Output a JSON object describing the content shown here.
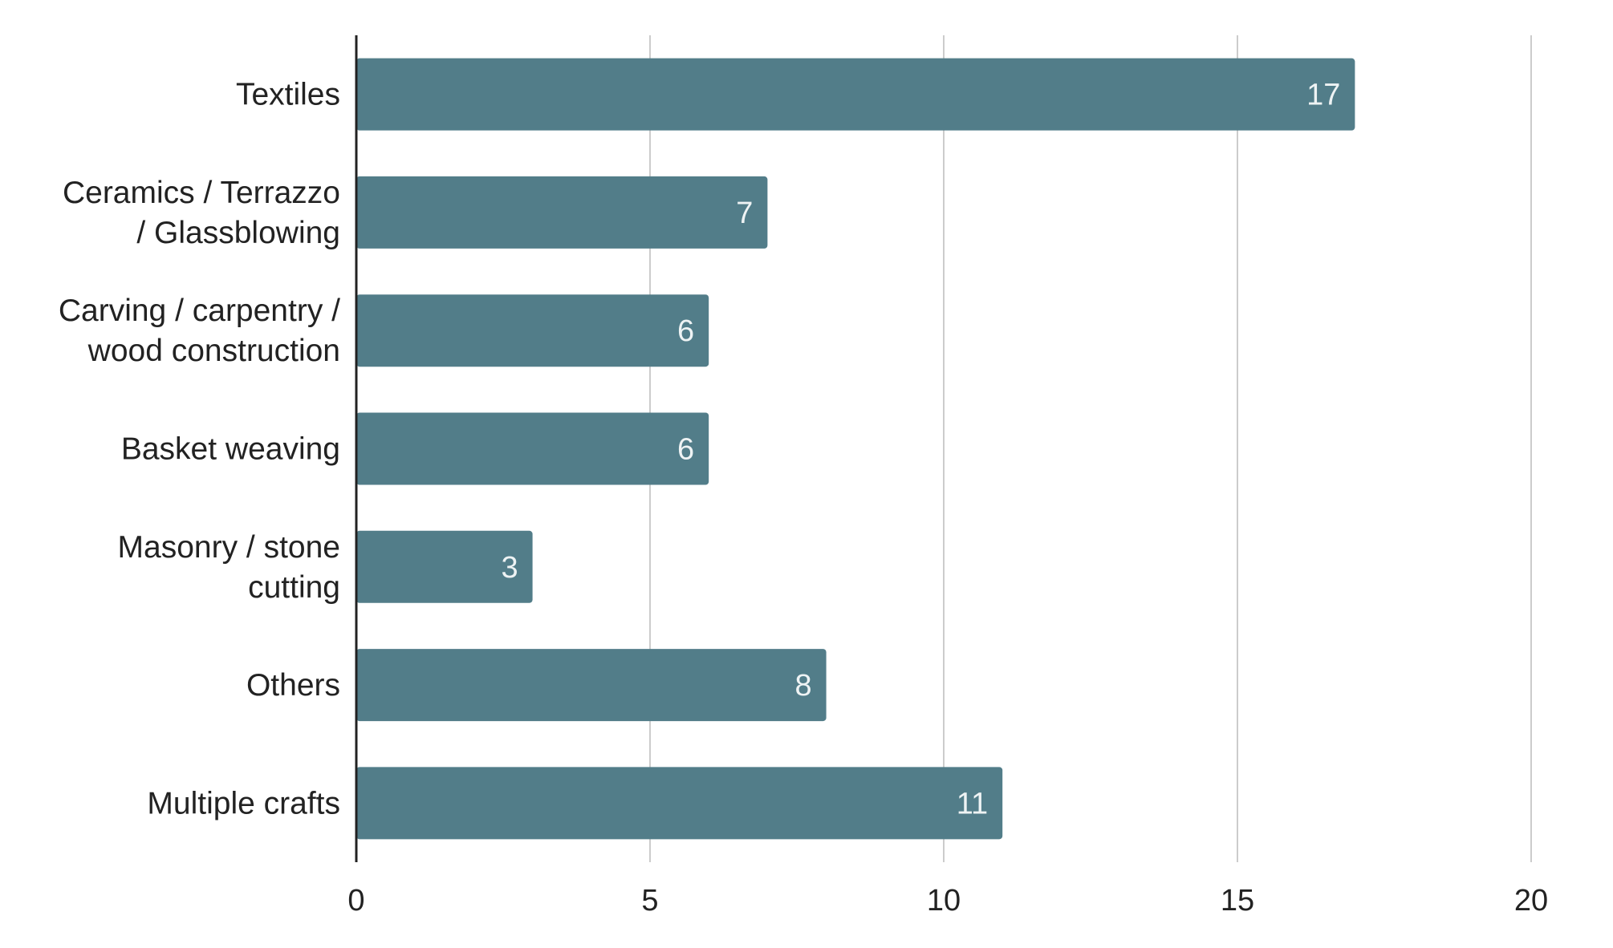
{
  "chart_data": {
    "type": "bar",
    "orientation": "horizontal",
    "title": "",
    "xlabel": "",
    "ylabel": "",
    "categories": [
      "Textiles",
      "Ceramics / Terrazzo / Glassblowing",
      "Carving / carpentry / wood construction",
      "Basket weaving",
      "Masonry / stone cutting",
      "Others",
      "Multiple crafts"
    ],
    "category_lines": [
      [
        "Textiles"
      ],
      [
        "Ceramics / Terrazzo",
        "/ Glassblowing"
      ],
      [
        "Carving / carpentry /",
        "wood construction"
      ],
      [
        "Basket weaving"
      ],
      [
        "Masonry / stone",
        "cutting"
      ],
      [
        "Others"
      ],
      [
        "Multiple crafts"
      ]
    ],
    "values": [
      17,
      7,
      6,
      6,
      3,
      8,
      11
    ],
    "data_labels": [
      "17",
      "7",
      "6",
      "6",
      "3",
      "8",
      "11"
    ],
    "xlim": [
      0,
      20
    ],
    "xticks": [
      0,
      5,
      10,
      15,
      20
    ],
    "xtick_labels": [
      "0",
      "5",
      "10",
      "15",
      "20"
    ],
    "grid": true,
    "legend": "none",
    "bar_color": "#527d89",
    "grid_color": "#cccccc",
    "axis_color": "#222222",
    "data_label_color": "#eef3f4"
  }
}
